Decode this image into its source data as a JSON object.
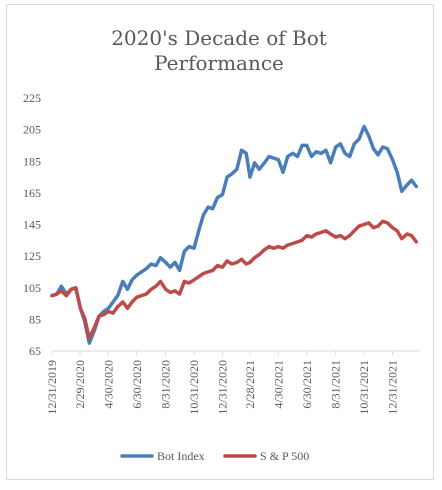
{
  "chart_data": {
    "type": "line",
    "title": "2020's Decade of Bot Performance",
    "title_lines": [
      "2020's Decade of Bot",
      "Performance"
    ],
    "ylim": [
      65,
      225
    ],
    "y_ticks": [
      65,
      85,
      105,
      125,
      145,
      165,
      185,
      205,
      225
    ],
    "x_range": [
      "2019-12-31",
      "2022-02-28"
    ],
    "x_ticks": [
      "12/31/2019",
      "2/29/2020",
      "4/30/2020",
      "6/30/2020",
      "8/31/2020",
      "10/31/2020",
      "12/31/2020",
      "2/28/2021",
      "4/30/2021",
      "6/30/2021",
      "8/31/2021",
      "10/31/2021",
      "12/31/2021"
    ],
    "grid": false,
    "legend_position": "bottom",
    "series": [
      {
        "name": "Bot Index",
        "color": "#4a7ebb",
        "points": [
          [
            "2019-12-31",
            100
          ],
          [
            "2020-01-10",
            101
          ],
          [
            "2020-01-20",
            106
          ],
          [
            "2020-01-31",
            101
          ],
          [
            "2020-02-10",
            104
          ],
          [
            "2020-02-20",
            105
          ],
          [
            "2020-03-01",
            92
          ],
          [
            "2020-03-10",
            84
          ],
          [
            "2020-03-20",
            70
          ],
          [
            "2020-03-31",
            78
          ],
          [
            "2020-04-10",
            87
          ],
          [
            "2020-04-20",
            90
          ],
          [
            "2020-04-30",
            92
          ],
          [
            "2020-05-10",
            96
          ],
          [
            "2020-05-20",
            100
          ],
          [
            "2020-05-31",
            109
          ],
          [
            "2020-06-10",
            104
          ],
          [
            "2020-06-20",
            110
          ],
          [
            "2020-06-30",
            113
          ],
          [
            "2020-07-10",
            115
          ],
          [
            "2020-07-20",
            117
          ],
          [
            "2020-07-31",
            120
          ],
          [
            "2020-08-10",
            119
          ],
          [
            "2020-08-20",
            124
          ],
          [
            "2020-08-31",
            121
          ],
          [
            "2020-09-10",
            118
          ],
          [
            "2020-09-20",
            121
          ],
          [
            "2020-09-30",
            116
          ],
          [
            "2020-10-10",
            128
          ],
          [
            "2020-10-20",
            131
          ],
          [
            "2020-10-31",
            130
          ],
          [
            "2020-11-10",
            141
          ],
          [
            "2020-11-20",
            151
          ],
          [
            "2020-11-30",
            156
          ],
          [
            "2020-12-10",
            155
          ],
          [
            "2020-12-20",
            162
          ],
          [
            "2020-12-31",
            164
          ],
          [
            "2021-01-10",
            175
          ],
          [
            "2021-01-20",
            177
          ],
          [
            "2021-01-31",
            180
          ],
          [
            "2021-02-10",
            192
          ],
          [
            "2021-02-20",
            190
          ],
          [
            "2021-02-28",
            175
          ],
          [
            "2021-03-10",
            184
          ],
          [
            "2021-03-20",
            180
          ],
          [
            "2021-03-31",
            184
          ],
          [
            "2021-04-10",
            188
          ],
          [
            "2021-04-20",
            187
          ],
          [
            "2021-04-30",
            186
          ],
          [
            "2021-05-10",
            178
          ],
          [
            "2021-05-20",
            188
          ],
          [
            "2021-05-31",
            190
          ],
          [
            "2021-06-10",
            188
          ],
          [
            "2021-06-20",
            195
          ],
          [
            "2021-06-30",
            195
          ],
          [
            "2021-07-10",
            188
          ],
          [
            "2021-07-20",
            191
          ],
          [
            "2021-07-31",
            190
          ],
          [
            "2021-08-10",
            192
          ],
          [
            "2021-08-20",
            184
          ],
          [
            "2021-08-31",
            194
          ],
          [
            "2021-09-10",
            196
          ],
          [
            "2021-09-20",
            190
          ],
          [
            "2021-09-30",
            188
          ],
          [
            "2021-10-10",
            196
          ],
          [
            "2021-10-20",
            199
          ],
          [
            "2021-10-31",
            207
          ],
          [
            "2021-11-10",
            201
          ],
          [
            "2021-11-20",
            193
          ],
          [
            "2021-11-30",
            189
          ],
          [
            "2021-12-10",
            194
          ],
          [
            "2021-12-20",
            193
          ],
          [
            "2021-12-31",
            186
          ],
          [
            "2022-01-10",
            178
          ],
          [
            "2022-01-20",
            166
          ],
          [
            "2022-01-31",
            170
          ],
          [
            "2022-02-10",
            173
          ],
          [
            "2022-02-20",
            169
          ]
        ]
      },
      {
        "name": "S & P 500",
        "color": "#be4b48",
        "points": [
          [
            "2019-12-31",
            100
          ],
          [
            "2020-01-10",
            101
          ],
          [
            "2020-01-20",
            103
          ],
          [
            "2020-01-31",
            100
          ],
          [
            "2020-02-10",
            104
          ],
          [
            "2020-02-20",
            105
          ],
          [
            "2020-03-01",
            92
          ],
          [
            "2020-03-10",
            86
          ],
          [
            "2020-03-20",
            73
          ],
          [
            "2020-03-31",
            80
          ],
          [
            "2020-04-10",
            87
          ],
          [
            "2020-04-20",
            88
          ],
          [
            "2020-04-30",
            90
          ],
          [
            "2020-05-10",
            89
          ],
          [
            "2020-05-20",
            93
          ],
          [
            "2020-05-31",
            96
          ],
          [
            "2020-06-10",
            92
          ],
          [
            "2020-06-20",
            96
          ],
          [
            "2020-06-30",
            99
          ],
          [
            "2020-07-10",
            100
          ],
          [
            "2020-07-20",
            101
          ],
          [
            "2020-07-31",
            104
          ],
          [
            "2020-08-10",
            106
          ],
          [
            "2020-08-20",
            109
          ],
          [
            "2020-08-31",
            104
          ],
          [
            "2020-09-10",
            102
          ],
          [
            "2020-09-20",
            103
          ],
          [
            "2020-09-30",
            101
          ],
          [
            "2020-10-10",
            109
          ],
          [
            "2020-10-20",
            108
          ],
          [
            "2020-10-31",
            110
          ],
          [
            "2020-11-10",
            112
          ],
          [
            "2020-11-20",
            114
          ],
          [
            "2020-11-30",
            115
          ],
          [
            "2020-12-10",
            116
          ],
          [
            "2020-12-20",
            119
          ],
          [
            "2020-12-31",
            118
          ],
          [
            "2021-01-10",
            122
          ],
          [
            "2021-01-20",
            120
          ],
          [
            "2021-01-31",
            121
          ],
          [
            "2021-02-10",
            123
          ],
          [
            "2021-02-20",
            120
          ],
          [
            "2021-02-28",
            121
          ],
          [
            "2021-03-10",
            124
          ],
          [
            "2021-03-20",
            126
          ],
          [
            "2021-03-31",
            129
          ],
          [
            "2021-04-10",
            131
          ],
          [
            "2021-04-20",
            130
          ],
          [
            "2021-04-30",
            131
          ],
          [
            "2021-05-10",
            130
          ],
          [
            "2021-05-20",
            132
          ],
          [
            "2021-05-31",
            133
          ],
          [
            "2021-06-10",
            134
          ],
          [
            "2021-06-20",
            135
          ],
          [
            "2021-06-30",
            138
          ],
          [
            "2021-07-10",
            137
          ],
          [
            "2021-07-20",
            139
          ],
          [
            "2021-07-31",
            140
          ],
          [
            "2021-08-10",
            141
          ],
          [
            "2021-08-20",
            139
          ],
          [
            "2021-08-31",
            137
          ],
          [
            "2021-09-10",
            138
          ],
          [
            "2021-09-20",
            136
          ],
          [
            "2021-09-30",
            138
          ],
          [
            "2021-10-10",
            141
          ],
          [
            "2021-10-20",
            144
          ],
          [
            "2021-10-31",
            145
          ],
          [
            "2021-11-10",
            146
          ],
          [
            "2021-11-20",
            143
          ],
          [
            "2021-11-30",
            144
          ],
          [
            "2021-12-10",
            147
          ],
          [
            "2021-12-20",
            146
          ],
          [
            "2021-12-31",
            143
          ],
          [
            "2022-01-10",
            141
          ],
          [
            "2022-01-20",
            136
          ],
          [
            "2022-01-31",
            139
          ],
          [
            "2022-02-10",
            138
          ],
          [
            "2022-02-20",
            134
          ]
        ]
      }
    ]
  }
}
